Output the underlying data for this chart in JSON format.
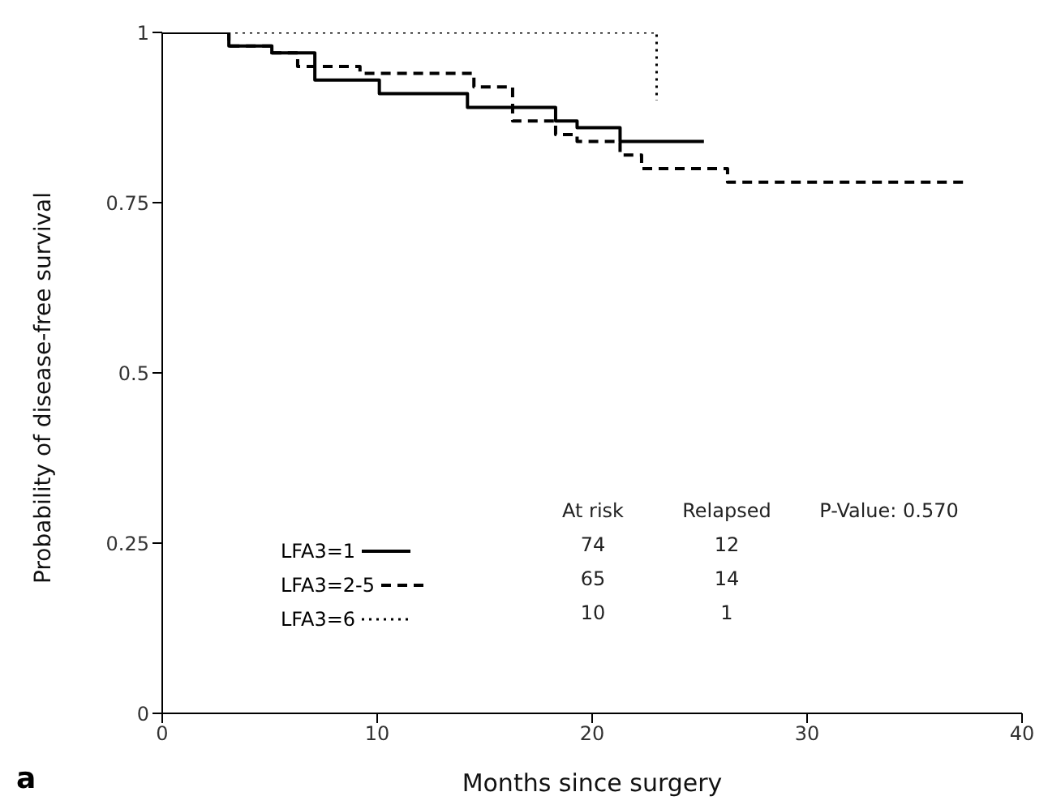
{
  "chart_data": {
    "type": "step",
    "xlabel": "Months since surgery",
    "ylabel": "Probability of disease-free survival",
    "xlim": [
      0,
      40
    ],
    "xticks": [
      0,
      10,
      20,
      30,
      40
    ],
    "ylim": [
      0,
      1
    ],
    "yticks": [
      0,
      0.25,
      0.5,
      0.75,
      1
    ],
    "legend": "bottom left",
    "marker": "none",
    "series": [
      {
        "name": "LFA3=1",
        "color": "#000000",
        "line_style": "solid",
        "x": [
          0,
          3.1,
          5.1,
          7.1,
          10.1,
          14.2,
          18.3,
          19.3,
          21.3,
          25.2
        ],
        "values": [
          1,
          0.98,
          0.97,
          0.93,
          0.91,
          0.89,
          0.87,
          0.86,
          0.84,
          0.84
        ]
      },
      {
        "name": "LFA3=2-5",
        "color": "#000000",
        "line_style": "dashed",
        "x": [
          0,
          3.1,
          5.1,
          6.3,
          9.2,
          14.5,
          16.3,
          18.3,
          19.3,
          21.3,
          22.3,
          26.3,
          37.5
        ],
        "values": [
          1,
          0.98,
          0.97,
          0.95,
          0.94,
          0.92,
          0.87,
          0.85,
          0.84,
          0.82,
          0.8,
          0.78,
          0.78
        ]
      },
      {
        "name": "LFA3=6",
        "color": "#000000",
        "line_style": "dotted",
        "x": [
          0,
          23
        ],
        "values": [
          1,
          0.9
        ]
      }
    ],
    "annotations": [
      "At risk",
      "Relapsed",
      "P-Value: 0.570",
      "74",
      "12",
      "65",
      "14",
      "10",
      "1",
      "a"
    ]
  }
}
